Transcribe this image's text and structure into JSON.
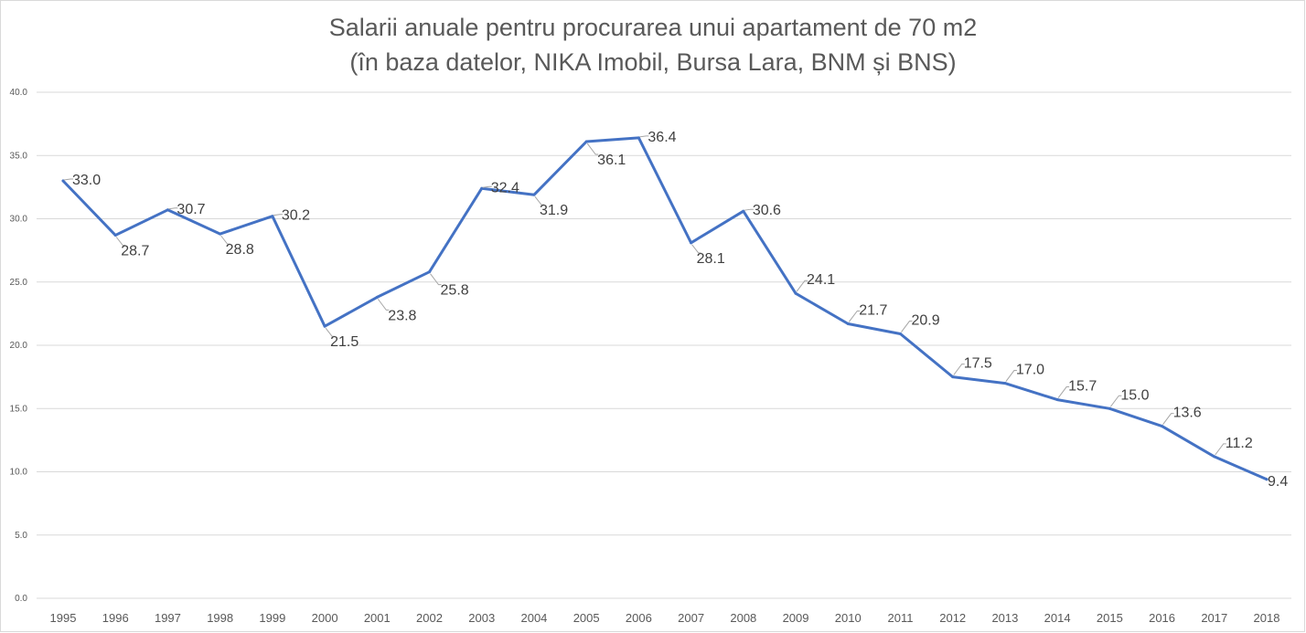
{
  "chart_data": {
    "type": "line",
    "title": "Salarii anuale pentru procurarea unui apartament de 70 m2",
    "subtitle": "(în baza datelor, NIKA Imobil, Bursa Lara, BNM și BNS)",
    "categories": [
      "1995",
      "1996",
      "1997",
      "1998",
      "1999",
      "2000",
      "2001",
      "2002",
      "2003",
      "2004",
      "2005",
      "2006",
      "2007",
      "2008",
      "2009",
      "2010",
      "2011",
      "2012",
      "2013",
      "2014",
      "2015",
      "2016",
      "2017",
      "2018"
    ],
    "series": [
      {
        "values": [
          33.0,
          28.7,
          30.7,
          28.8,
          30.2,
          21.5,
          23.8,
          25.8,
          32.4,
          31.9,
          36.1,
          36.4,
          28.1,
          30.6,
          24.1,
          21.7,
          20.9,
          17.5,
          17.0,
          15.7,
          15.0,
          13.6,
          11.2,
          9.4
        ],
        "color": "#4472c4"
      }
    ],
    "ylim": [
      0,
      40
    ],
    "yticks": [
      "0.0",
      "5.0",
      "10.0",
      "15.0",
      "20.0",
      "25.0",
      "30.0",
      "35.0",
      "40.0"
    ],
    "grid": true,
    "legend": "none",
    "colors": {
      "line": "#4472c4",
      "grid": "#d9d9d9",
      "text": "#595959"
    }
  }
}
